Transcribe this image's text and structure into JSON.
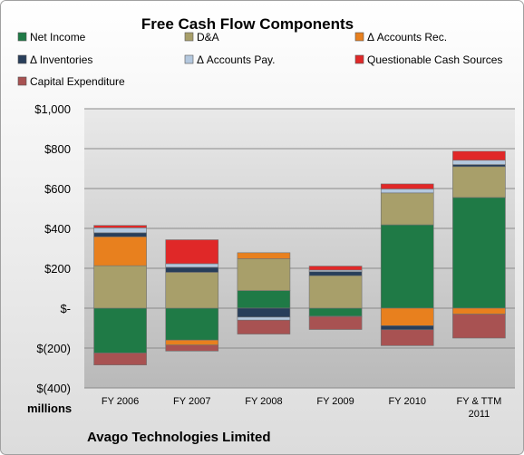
{
  "chart_data": {
    "type": "bar",
    "stacked": true,
    "title": "Free Cash Flow Components",
    "company": "Avago Technologies Limited",
    "unit_label": "millions",
    "categories": [
      "FY 2006",
      "FY 2007",
      "FY 2008",
      "FY 2009",
      "FY 2010",
      "FY & TTM 2011"
    ],
    "ylim": [
      -400,
      1000
    ],
    "yticks": [
      -400,
      -200,
      0,
      200,
      400,
      600,
      800,
      1000
    ],
    "ytick_labels": [
      "$(400)",
      "$(200)",
      "$-",
      "$200",
      "$400",
      "$600",
      "$800",
      "$1,000"
    ],
    "grid": true,
    "legend_position": "top",
    "series": [
      {
        "name": "Net Income",
        "color": "#1f7a46",
        "values": [
          -225,
          -160,
          88,
          -40,
          418,
          555
        ]
      },
      {
        "name": "D&A",
        "color": "#a89f6a",
        "values": [
          213,
          180,
          160,
          163,
          160,
          155
        ]
      },
      {
        "name": "Δ Accounts Rec.",
        "color": "#e8801e",
        "values": [
          145,
          -25,
          30,
          -2,
          -88,
          -30
        ]
      },
      {
        "name": "Δ Inventories",
        "color": "#283e5a",
        "values": [
          20,
          25,
          -45,
          20,
          -20,
          10
        ]
      },
      {
        "name": "Δ Accounts Pay.",
        "color": "#b4c8de",
        "values": [
          25,
          18,
          -15,
          8,
          20,
          22
        ]
      },
      {
        "name": "Questionable Cash Sources",
        "color": "#e02828",
        "values": [
          12,
          120,
          0,
          20,
          25,
          45
        ]
      },
      {
        "name": "Capital Expenditure",
        "color": "#a85252",
        "values": [
          -60,
          -30,
          -70,
          -65,
          -80,
          -120
        ]
      }
    ]
  }
}
